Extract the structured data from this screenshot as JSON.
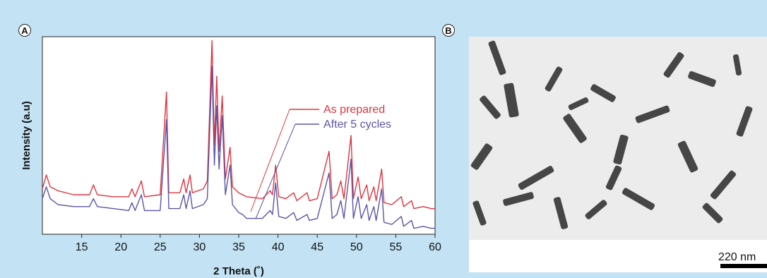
{
  "panels": {
    "a_label": "A",
    "b_label": "B"
  },
  "chart_data": {
    "type": "line",
    "xlabel": "2 Theta (˚)",
    "ylabel": "Intensity (a.u)",
    "xlim": [
      10,
      60
    ],
    "xticks": [
      15,
      20,
      25,
      30,
      35,
      40,
      45,
      50,
      55,
      60
    ],
    "grid": false,
    "legend": "right, with leader lines to curves",
    "series": [
      {
        "name": "As prepared",
        "color": "#e0343f",
        "values": [
          [
            10,
            0.23
          ],
          [
            10.5,
            0.3
          ],
          [
            11,
            0.24
          ],
          [
            12,
            0.22
          ],
          [
            14,
            0.2
          ],
          [
            16,
            0.2
          ],
          [
            16.5,
            0.25
          ],
          [
            17,
            0.2
          ],
          [
            19,
            0.19
          ],
          [
            21,
            0.19
          ],
          [
            21.4,
            0.23
          ],
          [
            21.8,
            0.19
          ],
          [
            22.6,
            0.27
          ],
          [
            23,
            0.19
          ],
          [
            25,
            0.2
          ],
          [
            25.8,
            0.72
          ],
          [
            26.1,
            0.21
          ],
          [
            27.5,
            0.21
          ],
          [
            28,
            0.28
          ],
          [
            28.3,
            0.21
          ],
          [
            28.8,
            0.3
          ],
          [
            29.1,
            0.21
          ],
          [
            30.5,
            0.23
          ],
          [
            31,
            0.27
          ],
          [
            31.6,
            0.98
          ],
          [
            31.9,
            0.45
          ],
          [
            32.2,
            0.8
          ],
          [
            32.5,
            0.42
          ],
          [
            32.9,
            0.7
          ],
          [
            33.3,
            0.28
          ],
          [
            33.9,
            0.44
          ],
          [
            34.2,
            0.24
          ],
          [
            35,
            0.21
          ],
          [
            35.5,
            0.2
          ],
          [
            36,
            0.19
          ],
          [
            38,
            0.18
          ],
          [
            39,
            0.22
          ],
          [
            39.3,
            0.2
          ],
          [
            39.7,
            0.35
          ],
          [
            40.1,
            0.19
          ],
          [
            41,
            0.18
          ],
          [
            42,
            0.21
          ],
          [
            42.4,
            0.17
          ],
          [
            43.7,
            0.21
          ],
          [
            44,
            0.17
          ],
          [
            45,
            0.18
          ],
          [
            46.5,
            0.42
          ],
          [
            46.9,
            0.18
          ],
          [
            47.5,
            0.2
          ],
          [
            48,
            0.27
          ],
          [
            48.4,
            0.18
          ],
          [
            49.3,
            0.5
          ],
          [
            49.6,
            0.18
          ],
          [
            50.2,
            0.29
          ],
          [
            50.6,
            0.18
          ],
          [
            51.3,
            0.25
          ],
          [
            51.6,
            0.17
          ],
          [
            52.2,
            0.24
          ],
          [
            52.5,
            0.17
          ],
          [
            53.2,
            0.33
          ],
          [
            53.5,
            0.16
          ],
          [
            54.5,
            0.15
          ],
          [
            55.7,
            0.19
          ],
          [
            56,
            0.14
          ],
          [
            57,
            0.17
          ],
          [
            57.3,
            0.13
          ],
          [
            58.5,
            0.14
          ],
          [
            59.5,
            0.13
          ],
          [
            60,
            0.13
          ]
        ]
      },
      {
        "name": "After 5 cycles",
        "color": "#5b55a6",
        "values": [
          [
            10,
            0.18
          ],
          [
            10.5,
            0.24
          ],
          [
            11,
            0.18
          ],
          [
            12,
            0.15
          ],
          [
            14,
            0.14
          ],
          [
            16,
            0.14
          ],
          [
            16.5,
            0.18
          ],
          [
            17,
            0.14
          ],
          [
            19,
            0.13
          ],
          [
            21,
            0.12
          ],
          [
            21.4,
            0.16
          ],
          [
            21.8,
            0.12
          ],
          [
            22.6,
            0.2
          ],
          [
            23,
            0.12
          ],
          [
            25,
            0.12
          ],
          [
            25.8,
            0.58
          ],
          [
            26.1,
            0.13
          ],
          [
            27.5,
            0.13
          ],
          [
            28,
            0.2
          ],
          [
            28.3,
            0.13
          ],
          [
            28.8,
            0.22
          ],
          [
            29.1,
            0.13
          ],
          [
            30.5,
            0.15
          ],
          [
            31,
            0.18
          ],
          [
            31.6,
            0.85
          ],
          [
            31.9,
            0.35
          ],
          [
            32.2,
            0.65
          ],
          [
            32.5,
            0.33
          ],
          [
            32.9,
            0.6
          ],
          [
            33.3,
            0.2
          ],
          [
            33.9,
            0.35
          ],
          [
            34.2,
            0.15
          ],
          [
            35,
            0.11
          ],
          [
            35.5,
            0.1
          ],
          [
            36,
            0.08
          ],
          [
            38,
            0.08
          ],
          [
            39,
            0.12
          ],
          [
            39.3,
            0.1
          ],
          [
            39.7,
            0.26
          ],
          [
            40.1,
            0.09
          ],
          [
            41,
            0.08
          ],
          [
            42,
            0.11
          ],
          [
            42.4,
            0.07
          ],
          [
            43.7,
            0.1
          ],
          [
            44,
            0.07
          ],
          [
            45,
            0.08
          ],
          [
            46.5,
            0.31
          ],
          [
            46.9,
            0.08
          ],
          [
            47.5,
            0.1
          ],
          [
            48,
            0.17
          ],
          [
            48.4,
            0.08
          ],
          [
            49.3,
            0.38
          ],
          [
            49.6,
            0.08
          ],
          [
            50.2,
            0.19
          ],
          [
            50.6,
            0.08
          ],
          [
            51.3,
            0.15
          ],
          [
            51.6,
            0.07
          ],
          [
            52.2,
            0.14
          ],
          [
            52.5,
            0.07
          ],
          [
            53.2,
            0.23
          ],
          [
            53.5,
            0.06
          ],
          [
            54.5,
            0.05
          ],
          [
            55.7,
            0.09
          ],
          [
            56,
            0.04
          ],
          [
            57,
            0.07
          ],
          [
            57.3,
            0.03
          ],
          [
            58.5,
            0.04
          ],
          [
            59.5,
            0.03
          ],
          [
            60,
            0.03
          ]
        ]
      }
    ]
  },
  "tem": {
    "scale_label": "220 nm"
  }
}
